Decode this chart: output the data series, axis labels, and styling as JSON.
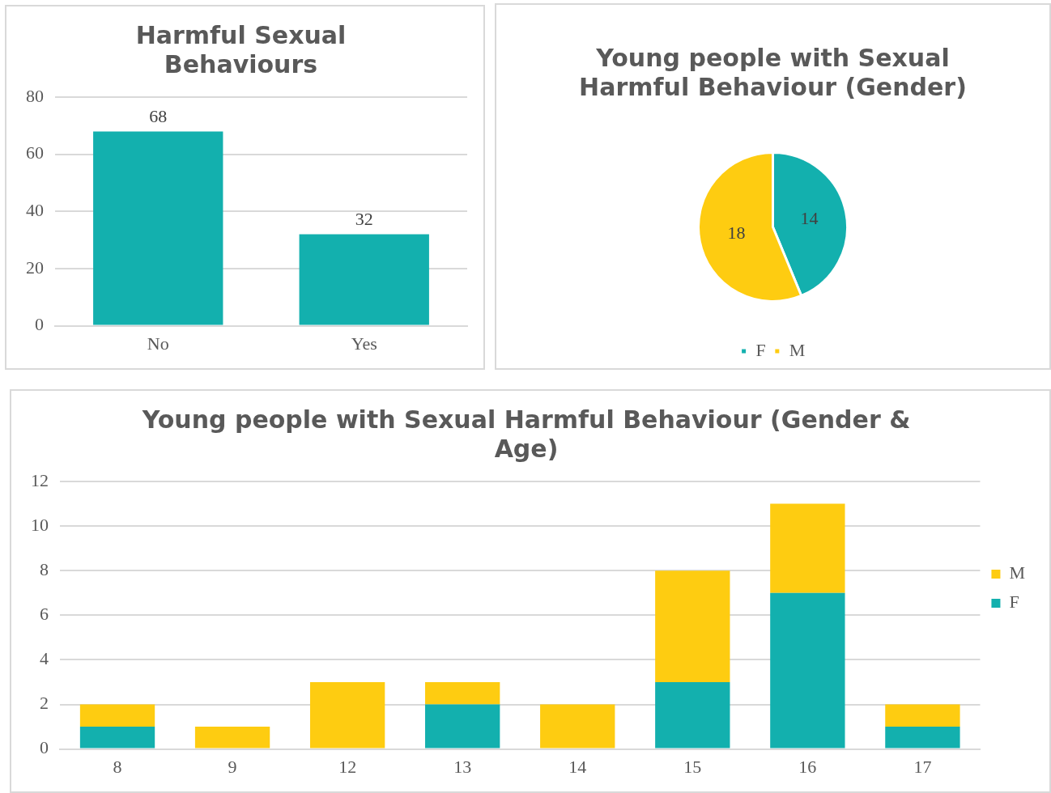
{
  "chart_data": [
    {
      "type": "bar",
      "title": "Harmful Sexual Behaviours",
      "categories": [
        "No",
        "Yes"
      ],
      "values": [
        68,
        32
      ],
      "color": "#13b0ae",
      "ylim": [
        0,
        80
      ],
      "yticks": [
        0,
        20,
        40,
        60,
        80
      ],
      "grid": "y",
      "data_labels": true,
      "legend": false
    },
    {
      "type": "pie",
      "title": "Young people with Sexual Harmful Behaviour (Gender)",
      "categories": [
        "F",
        "M"
      ],
      "values": [
        14,
        18
      ],
      "colors": [
        "#13b0ae",
        "#fecc11"
      ],
      "data_labels": true,
      "legend": "bottom"
    },
    {
      "type": "bar",
      "title": "Young people with Sexual Harmful Behaviour (Gender & Age)",
      "categories": [
        "8",
        "9",
        "12",
        "13",
        "14",
        "15",
        "16",
        "17"
      ],
      "stacked": true,
      "ylim": [
        0,
        12
      ],
      "yticks": [
        0,
        2,
        4,
        6,
        8,
        10,
        12
      ],
      "grid": "y",
      "legend": "right",
      "series": [
        {
          "name": "F",
          "color": "#13b0ae",
          "values": [
            1,
            0,
            0,
            2,
            0,
            3,
            7,
            1
          ]
        },
        {
          "name": "M",
          "color": "#fecc11",
          "values": [
            1,
            1,
            3,
            1,
            2,
            5,
            4,
            1
          ]
        }
      ]
    }
  ]
}
